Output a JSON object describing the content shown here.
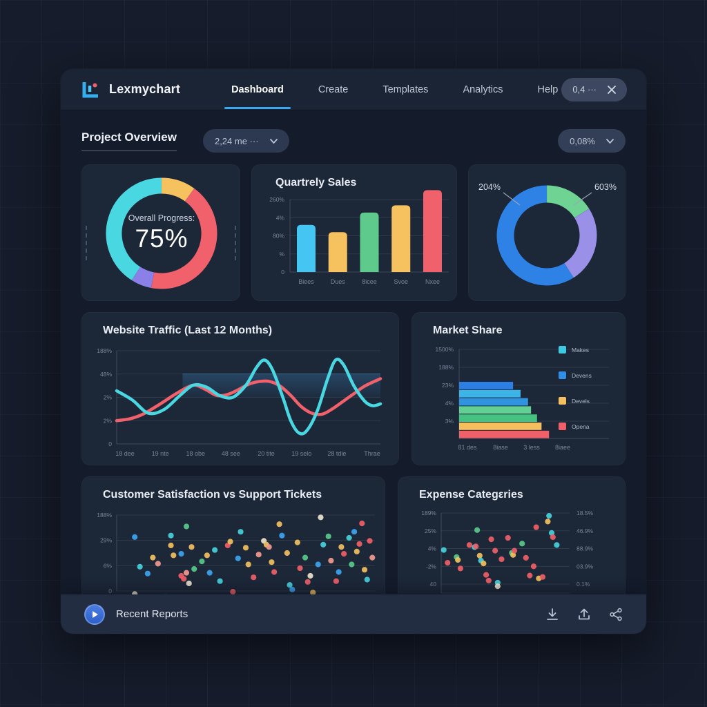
{
  "app": {
    "logo_text": "Lexmychart",
    "nav": [
      {
        "label": "Dashboard",
        "active": true
      },
      {
        "label": "Create",
        "active": false
      },
      {
        "label": "Templates",
        "active": false
      },
      {
        "label": "Analytics",
        "active": false
      },
      {
        "label": "Help",
        "active": false
      }
    ],
    "badge": {
      "value": "0,4 ···"
    }
  },
  "page": {
    "title": "Project Overview",
    "filter_left": "2,24 me ···",
    "filter_right": "0,08%"
  },
  "footer": {
    "title": "Recent Reports",
    "icons": [
      "download",
      "upload",
      "share"
    ]
  },
  "colors": {
    "accent_blue": "#38a9f0",
    "cyan": "#49d7e2",
    "red": "#f0616c",
    "yellow": "#f6c25f",
    "green": "#5ecb8c",
    "purple": "#8b80e8",
    "blue": "#2e82e6"
  },
  "chart_data": [
    {
      "id": "progress_donut",
      "type": "pie",
      "center_label": "Overall Progress:",
      "center_value": "75%",
      "slices": [
        {
          "name": "yellow",
          "value": 10,
          "color": "#f6c25f"
        },
        {
          "name": "red",
          "value": 43,
          "color": "#f0616c"
        },
        {
          "name": "purple",
          "value": 6,
          "color": "#8b80e8"
        },
        {
          "name": "cyan",
          "value": 41,
          "color": "#49d7e2"
        }
      ]
    },
    {
      "id": "quarterly_sales",
      "type": "bar",
      "title": "Quartrely Sales",
      "y_ticks": [
        "260%",
        "4%",
        "80%",
        "%",
        "0"
      ],
      "categories": [
        "Biees",
        "Dues",
        "8icee",
        "Svoe",
        "Nxee"
      ],
      "values": [
        65,
        55,
        82,
        92,
        113
      ],
      "bar_colors": [
        "#45c6f2",
        "#f6c25f",
        "#5ecb8c",
        "#f6c25f",
        "#f0616c"
      ],
      "ylim": [
        0,
        100
      ]
    },
    {
      "id": "share_donut",
      "type": "pie",
      "labels": [
        {
          "text": "204%",
          "side": "left"
        },
        {
          "text": "603%",
          "side": "right"
        }
      ],
      "slices": [
        {
          "name": "green",
          "value": 16,
          "color": "#6fd393"
        },
        {
          "name": "purple",
          "value": 25,
          "color": "#9b90e8"
        },
        {
          "name": "blue",
          "value": 59,
          "color": "#2e82e6"
        }
      ]
    },
    {
      "id": "website_traffic",
      "type": "line",
      "title": "Website Traffic (Last 12 Months)",
      "y_ticks": [
        "188%",
        "48%",
        "2%",
        "2%",
        "0"
      ],
      "x_ticks": [
        "18 dee",
        "19 nte",
        "18 obe",
        "48 see",
        "20 tite",
        "19 selo",
        "28 tdie",
        "Thrae"
      ],
      "band": {
        "x0": 25,
        "x1": 100,
        "y0": 50,
        "y1": 76
      },
      "series": [
        {
          "name": "red",
          "color": "#f0616c",
          "points": [
            [
              0,
              25
            ],
            [
              5,
              27
            ],
            [
              10,
              32
            ],
            [
              16,
              42
            ],
            [
              22,
              53
            ],
            [
              27,
              61
            ],
            [
              30,
              63
            ],
            [
              34,
              58
            ],
            [
              38,
              52
            ],
            [
              42,
              53
            ],
            [
              46,
              58
            ],
            [
              50,
              64
            ],
            [
              54,
              67
            ],
            [
              58,
              67
            ],
            [
              62,
              62
            ],
            [
              66,
              52
            ],
            [
              70,
              40
            ],
            [
              74,
              33
            ],
            [
              78,
              32
            ],
            [
              82,
              38
            ],
            [
              86,
              46
            ],
            [
              90,
              54
            ],
            [
              94,
              62
            ],
            [
              100,
              70
            ]
          ]
        },
        {
          "name": "cyan",
          "color": "#49d7e2",
          "points": [
            [
              0,
              57
            ],
            [
              6,
              47
            ],
            [
              12,
              33
            ],
            [
              18,
              37
            ],
            [
              24,
              52
            ],
            [
              29,
              63
            ],
            [
              34,
              61
            ],
            [
              39,
              52
            ],
            [
              44,
              50
            ],
            [
              49,
              63
            ],
            [
              53,
              82
            ],
            [
              56,
              90
            ],
            [
              59,
              80
            ],
            [
              63,
              50
            ],
            [
              66,
              25
            ],
            [
              69,
              12
            ],
            [
              72,
              14
            ],
            [
              76,
              35
            ],
            [
              80,
              70
            ],
            [
              83,
              90
            ],
            [
              86,
              85
            ],
            [
              90,
              62
            ],
            [
              94,
              46
            ],
            [
              97,
              41
            ],
            [
              100,
              43
            ]
          ]
        }
      ]
    },
    {
      "id": "market_share",
      "type": "hbar",
      "title": "Market Share",
      "y_ticks": [
        "1500%",
        "188%",
        "23%",
        "4%",
        "3%"
      ],
      "x_ticks": [
        "81 des",
        "8iase",
        "3 less",
        "8iaee"
      ],
      "values": [
        36,
        41,
        46,
        48,
        52,
        55,
        60
      ],
      "bar_colors": [
        "#2e7fe4",
        "#3db4e8",
        "#2f93e0",
        "#62d092",
        "#45c27f",
        "#f5bf5f",
        "#ef6068"
      ],
      "legend": [
        {
          "label": "Makes",
          "color": "#3dc9e0"
        },
        {
          "label": "Devens",
          "color": "#2f8fe8"
        },
        {
          "label": "Devels",
          "color": "#f5bf5f"
        },
        {
          "label": "Opena",
          "color": "#ef6068"
        }
      ]
    },
    {
      "id": "csat_scatter",
      "type": "scatter",
      "title": "Customer Satisfaction vs Support Tickets",
      "y_ticks": [
        "188%",
        "29%",
        "6%",
        "0"
      ],
      "palette": [
        "#3da4f0",
        "#48d0dc",
        "#ef6068",
        "#f29a8e",
        "#f2c05e",
        "#57c989",
        "#ece2cc"
      ],
      "points": [
        [
          7,
          71,
          0
        ],
        [
          9,
          32,
          1
        ],
        [
          12,
          23,
          0
        ],
        [
          7,
          -4,
          6
        ],
        [
          19,
          -8,
          0
        ],
        [
          14,
          44,
          4
        ],
        [
          16,
          36,
          3
        ],
        [
          21,
          73,
          1
        ],
        [
          21,
          60,
          4
        ],
        [
          22,
          47,
          4
        ],
        [
          25,
          20,
          2
        ],
        [
          26,
          16,
          2
        ],
        [
          27,
          24,
          3
        ],
        [
          28,
          10,
          6
        ],
        [
          29,
          58,
          4
        ],
        [
          30,
          29,
          5
        ],
        [
          25,
          49,
          0
        ],
        [
          27,
          85,
          5
        ],
        [
          33,
          39,
          5
        ],
        [
          35,
          47,
          4
        ],
        [
          36,
          24,
          0
        ],
        [
          38,
          54,
          1
        ],
        [
          40,
          13,
          1
        ],
        [
          43,
          60,
          2
        ],
        [
          44,
          65,
          4
        ],
        [
          45,
          -1,
          2
        ],
        [
          47,
          43,
          0
        ],
        [
          48,
          78,
          1
        ],
        [
          50,
          57,
          4
        ],
        [
          51,
          35,
          4
        ],
        [
          53,
          18,
          2
        ],
        [
          55,
          48,
          3
        ],
        [
          57,
          66,
          6
        ],
        [
          58,
          61,
          4
        ],
        [
          59,
          58,
          3
        ],
        [
          60,
          38,
          4
        ],
        [
          61,
          25,
          2
        ],
        [
          63,
          88,
          4
        ],
        [
          64,
          73,
          0
        ],
        [
          66,
          50,
          4
        ],
        [
          67,
          8,
          1
        ],
        [
          68,
          2,
          0
        ],
        [
          70,
          64,
          4
        ],
        [
          71,
          30,
          2
        ],
        [
          73,
          44,
          5
        ],
        [
          74,
          12,
          2
        ],
        [
          75,
          20,
          6
        ],
        [
          76,
          -2,
          4
        ],
        [
          78,
          35,
          0
        ],
        [
          79,
          97,
          6
        ],
        [
          80,
          61,
          1
        ],
        [
          82,
          72,
          5
        ],
        [
          83,
          40,
          3
        ],
        [
          85,
          13,
          2
        ],
        [
          86,
          25,
          0
        ],
        [
          87,
          58,
          4
        ],
        [
          88,
          49,
          2
        ],
        [
          90,
          70,
          1
        ],
        [
          91,
          35,
          5
        ],
        [
          92,
          78,
          0
        ],
        [
          93,
          52,
          4
        ],
        [
          94,
          62,
          2
        ],
        [
          95,
          89,
          2
        ],
        [
          96,
          28,
          4
        ],
        [
          97,
          15,
          1
        ],
        [
          98,
          66,
          2
        ],
        [
          99,
          44,
          3
        ]
      ]
    },
    {
      "id": "expense_scatter",
      "type": "scatter",
      "title": "Expense Categεries",
      "y_ticks_left": [
        "189%",
        "25%",
        "4%",
        "-2%",
        "40"
      ],
      "y_ticks_right": [
        "18.5%",
        "46.9%",
        "88.9%",
        "03.9%",
        "0.1%"
      ],
      "palette": [
        "#ef6068",
        "#48d0dc",
        "#f2c05e",
        "#57c989",
        "#ece2cc"
      ],
      "points": [
        [
          2,
          48,
          1
        ],
        [
          5,
          30,
          0
        ],
        [
          12,
          38,
          3
        ],
        [
          13,
          34,
          2
        ],
        [
          15,
          22,
          0
        ],
        [
          22,
          55,
          0
        ],
        [
          26,
          52,
          1
        ],
        [
          27,
          53,
          0
        ],
        [
          28,
          76,
          3
        ],
        [
          30,
          40,
          2
        ],
        [
          31,
          33,
          1
        ],
        [
          33,
          29,
          2
        ],
        [
          35,
          13,
          0
        ],
        [
          37,
          5,
          0
        ],
        [
          39,
          63,
          0
        ],
        [
          42,
          47,
          0
        ],
        [
          44,
          2,
          1
        ],
        [
          44,
          -3,
          4
        ],
        [
          47,
          35,
          0
        ],
        [
          52,
          65,
          0
        ],
        [
          55,
          44,
          3
        ],
        [
          56,
          41,
          2
        ],
        [
          57,
          47,
          0
        ],
        [
          63,
          57,
          3
        ],
        [
          66,
          37,
          0
        ],
        [
          69,
          12,
          0
        ],
        [
          72,
          25,
          0
        ],
        [
          74,
          80,
          0
        ],
        [
          76,
          8,
          2
        ],
        [
          79,
          10,
          0
        ],
        [
          83,
          88,
          2
        ],
        [
          84,
          96,
          1
        ],
        [
          86,
          72,
          1
        ],
        [
          87,
          66,
          0
        ],
        [
          90,
          55,
          1
        ]
      ]
    }
  ]
}
